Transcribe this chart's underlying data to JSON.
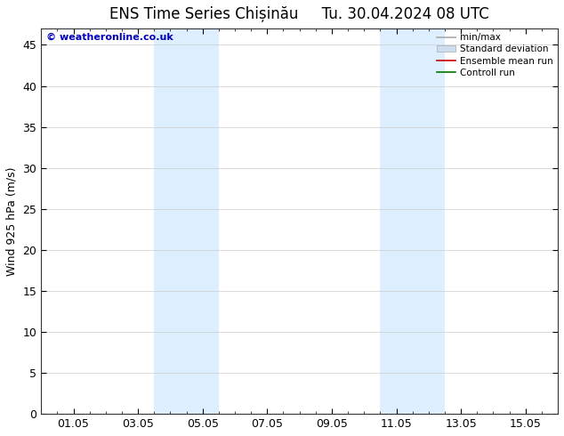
{
  "title": "ENS Time Series Chișinău     Tu. 30.04.2024 08 UTC",
  "ylabel": "Wind 925 hPa (m/s)",
  "watermark": "© weatheronline.co.uk",
  "ylim": [
    0,
    47
  ],
  "yticks": [
    0,
    5,
    10,
    15,
    20,
    25,
    30,
    35,
    40,
    45
  ],
  "xtick_labels": [
    "01.05",
    "03.05",
    "05.05",
    "07.05",
    "09.05",
    "11.05",
    "13.05",
    "15.05"
  ],
  "xtick_positions": [
    1,
    3,
    5,
    7,
    9,
    11,
    13,
    15
  ],
  "xlim": [
    0,
    16
  ],
  "shaded_bands": [
    {
      "xstart": 3.5,
      "xend": 5.0
    },
    {
      "xstart": 5.0,
      "xend": 5.5
    },
    {
      "xstart": 10.5,
      "xend": 12.0
    },
    {
      "xstart": 12.0,
      "xend": 12.5
    }
  ],
  "shade_color": "#ddeeff",
  "background_color": "#ffffff",
  "legend_items": [
    {
      "label": "min/max",
      "color": "#aaaaaa",
      "linestyle": "-",
      "lw": 1.2
    },
    {
      "label": "Standard deviation",
      "color": "#ccddee",
      "linestyle": "-",
      "lw": 5
    },
    {
      "label": "Ensemble mean run",
      "color": "#cc0000",
      "linestyle": "-",
      "lw": 1.2
    },
    {
      "label": "Controll run",
      "color": "#007700",
      "linestyle": "-",
      "lw": 1.2
    }
  ],
  "title_fontsize": 12,
  "tick_fontsize": 9,
  "ylabel_fontsize": 9,
  "watermark_color": "#0000bb",
  "grid_color": "#cccccc"
}
